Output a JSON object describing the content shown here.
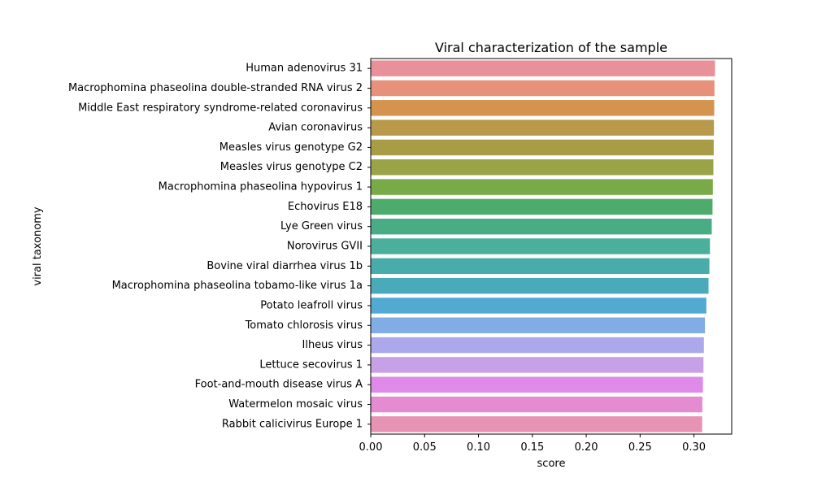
{
  "chart_data": {
    "type": "bar",
    "orientation": "horizontal",
    "title": "Viral characterization of the sample",
    "xlabel": "score",
    "ylabel": "viral taxonomy",
    "xlim": [
      0,
      0.335
    ],
    "xticks": [
      "0.00",
      "0.05",
      "0.10",
      "0.15",
      "0.20",
      "0.25",
      "0.30"
    ],
    "grid": false,
    "categories": [
      "Human adenovirus 31",
      "Macrophomina phaseolina double-stranded RNA virus 2",
      "Middle East respiratory syndrome-related coronavirus",
      "Avian coronavirus",
      "Measles virus genotype G2",
      "Measles virus genotype C2",
      "Macrophomina phaseolina hypovirus 1",
      "Echovirus E18",
      "Lye Green virus",
      "Norovirus GVII",
      "Bovine viral diarrhea virus 1b",
      "Macrophomina phaseolina tobamo-like virus 1a",
      "Potato leafroll virus",
      "Tomato chlorosis virus",
      "Ilheus virus",
      "Lettuce secovirus 1",
      "Foot-and-mouth disease virus A",
      "Watermelon mosaic virus",
      "Rabbit calicivirus Europe 1"
    ],
    "values": [
      0.3195,
      0.319,
      0.3188,
      0.3185,
      0.3183,
      0.318,
      0.3175,
      0.3172,
      0.3165,
      0.3148,
      0.3143,
      0.3135,
      0.3115,
      0.3102,
      0.3092,
      0.3088,
      0.3083,
      0.3078,
      0.3076
    ],
    "colors": [
      "#e8919a",
      "#e8917a",
      "#d4944d",
      "#b99a4a",
      "#a99c47",
      "#9aa447",
      "#78ab48",
      "#4dac6b",
      "#4aac85",
      "#4baf9c",
      "#4aacaa",
      "#4aaab9",
      "#52a9d2",
      "#82ace6",
      "#ada8ec",
      "#c8a0e7",
      "#df8ae9",
      "#e58bd2",
      "#e793b4"
    ]
  }
}
